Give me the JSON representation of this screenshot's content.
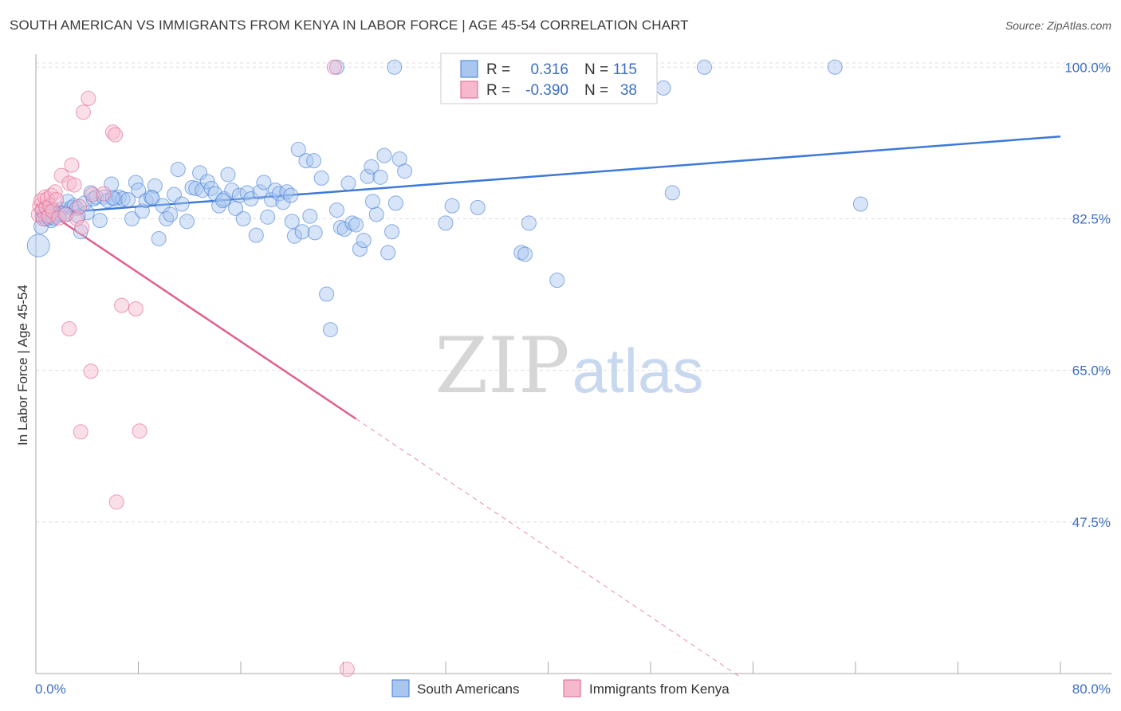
{
  "title": "SOUTH AMERICAN VS IMMIGRANTS FROM KENYA IN LABOR FORCE | AGE 45-54 CORRELATION CHART",
  "source": "Source: ZipAtlas.com",
  "watermark": {
    "zip": "ZIP",
    "atlas": "atlas"
  },
  "colors": {
    "blue": "#3d79d6",
    "blue_fill": "#a9c6ef",
    "pink": "#e0608e",
    "pink_fill": "#f6b8cd",
    "grid": "#dddddd",
    "axis_text": "#3d6fc4"
  },
  "stats": {
    "blue": {
      "r_label": "R =",
      "r_value": "0.316",
      "n_label": "N =",
      "n_value": "115"
    },
    "pink": {
      "r_label": "R =",
      "r_value": "-0.390",
      "n_label": "N =",
      "n_value": "38"
    }
  },
  "legend": [
    {
      "name": "South Americans"
    },
    {
      "name": "Immigrants from Kenya"
    }
  ],
  "chart_data": {
    "type": "scatter",
    "title": "SOUTH AMERICAN VS IMMIGRANTS FROM KENYA IN LABOR FORCE | AGE 45-54 CORRELATION CHART",
    "xlabel": "",
    "ylabel": "In Labor Force | Age 45-54",
    "xlim": [
      0,
      80
    ],
    "ylim": [
      30,
      101.5
    ],
    "x_tick_labels": [
      {
        "value": 0,
        "label": "0.0%"
      },
      {
        "value": 80,
        "label": "80.0%"
      }
    ],
    "y_tick_labels": [
      {
        "value": 100,
        "label": "100.0%"
      },
      {
        "value": 82.5,
        "label": "82.5%"
      },
      {
        "value": 65,
        "label": "65.0%"
      },
      {
        "value": 47.5,
        "label": "47.5%"
      }
    ],
    "grid": true,
    "legend_position": "bottom-center",
    "series": [
      {
        "name": "South Americans",
        "color": "#3d79d6",
        "trend": {
          "x0": 0,
          "y0": 83.0,
          "x1": 80,
          "y1": 92.0
        },
        "points": [
          [
            0.2,
            79.4
          ],
          [
            0.4,
            81.6
          ],
          [
            0.5,
            82.8
          ],
          [
            0.6,
            83.4
          ],
          [
            0.7,
            83.0
          ],
          [
            0.8,
            82.5
          ],
          [
            0.9,
            83.2
          ],
          [
            1.0,
            82.6
          ],
          [
            1.1,
            83.0
          ],
          [
            1.2,
            82.3
          ],
          [
            1.4,
            83.5
          ],
          [
            1.5,
            83.0
          ],
          [
            1.6,
            82.8
          ],
          [
            1.8,
            83.1
          ],
          [
            2.0,
            83.6
          ],
          [
            2.2,
            83.2
          ],
          [
            2.5,
            84.5
          ],
          [
            2.8,
            83.8
          ],
          [
            3.0,
            84.0
          ],
          [
            3.2,
            83.7
          ],
          [
            3.5,
            81.0
          ],
          [
            3.8,
            84.3
          ],
          [
            4.0,
            83.2
          ],
          [
            4.3,
            85.5
          ],
          [
            4.5,
            84.8
          ],
          [
            4.7,
            85.0
          ],
          [
            5.0,
            82.3
          ],
          [
            5.3,
            85.0
          ],
          [
            5.6,
            84.6
          ],
          [
            5.9,
            86.5
          ],
          [
            6.2,
            84.8
          ],
          [
            6.5,
            85.0
          ],
          [
            6.8,
            84.8
          ],
          [
            7.2,
            84.7
          ],
          [
            7.5,
            82.5
          ],
          [
            7.8,
            86.7
          ],
          [
            8.0,
            85.8
          ],
          [
            8.3,
            83.4
          ],
          [
            8.6,
            84.6
          ],
          [
            9.0,
            85.0
          ],
          [
            9.3,
            86.3
          ],
          [
            9.6,
            80.2
          ],
          [
            9.9,
            84.0
          ],
          [
            10.2,
            82.5
          ],
          [
            10.5,
            83.0
          ],
          [
            10.8,
            85.3
          ],
          [
            11.1,
            88.2
          ],
          [
            11.4,
            84.2
          ],
          [
            11.8,
            82.2
          ],
          [
            12.2,
            86.1
          ],
          [
            12.5,
            86.0
          ],
          [
            12.8,
            87.8
          ],
          [
            13.0,
            85.8
          ],
          [
            13.4,
            86.8
          ],
          [
            13.7,
            86.0
          ],
          [
            14.0,
            85.4
          ],
          [
            14.3,
            84.0
          ],
          [
            14.7,
            84.8
          ],
          [
            15.0,
            87.6
          ],
          [
            15.3,
            85.8
          ],
          [
            15.6,
            83.7
          ],
          [
            15.9,
            85.2
          ],
          [
            16.2,
            82.5
          ],
          [
            16.5,
            85.5
          ],
          [
            16.8,
            84.8
          ],
          [
            17.2,
            80.6
          ],
          [
            17.5,
            85.6
          ],
          [
            17.8,
            86.7
          ],
          [
            18.1,
            82.7
          ],
          [
            18.4,
            84.7
          ],
          [
            18.7,
            85.8
          ],
          [
            19.0,
            85.4
          ],
          [
            19.3,
            84.4
          ],
          [
            19.6,
            85.6
          ],
          [
            19.9,
            85.2
          ],
          [
            20.2,
            80.5
          ],
          [
            20.5,
            90.5
          ],
          [
            20.8,
            81.0
          ],
          [
            21.1,
            89.2
          ],
          [
            21.4,
            82.8
          ],
          [
            21.7,
            89.2
          ],
          [
            22.3,
            87.2
          ],
          [
            22.7,
            73.8
          ],
          [
            23.0,
            69.7
          ],
          [
            23.5,
            83.5
          ],
          [
            23.8,
            81.5
          ],
          [
            24.1,
            81.3
          ],
          [
            24.4,
            86.6
          ],
          [
            24.7,
            82.0
          ],
          [
            25.0,
            81.8
          ],
          [
            25.3,
            79.0
          ],
          [
            25.6,
            80.0
          ],
          [
            25.9,
            87.4
          ],
          [
            26.2,
            88.5
          ],
          [
            26.6,
            83.0
          ],
          [
            26.9,
            87.3
          ],
          [
            27.2,
            89.8
          ],
          [
            27.5,
            78.6
          ],
          [
            27.8,
            81.0
          ],
          [
            28.1,
            84.3
          ],
          [
            28.4,
            89.4
          ],
          [
            28.8,
            88.0
          ],
          [
            23.5,
            100.0
          ],
          [
            28.0,
            100.0
          ],
          [
            32.0,
            82.0
          ],
          [
            32.5,
            84.0
          ],
          [
            34.5,
            83.8
          ],
          [
            37.9,
            78.6
          ],
          [
            38.2,
            78.4
          ],
          [
            38.5,
            82.0
          ],
          [
            40.7,
            75.4
          ],
          [
            49.7,
            85.5
          ],
          [
            49.0,
            97.6
          ],
          [
            52.2,
            100.0
          ],
          [
            62.4,
            100.0
          ],
          [
            64.4,
            84.2
          ],
          [
            1.4,
            82.6
          ],
          [
            2.4,
            83.0
          ],
          [
            3.3,
            82.8
          ],
          [
            6.0,
            84.9
          ],
          [
            9.1,
            84.9
          ],
          [
            14.6,
            84.6
          ],
          [
            20.0,
            82.2
          ],
          [
            21.8,
            80.9
          ],
          [
            26.3,
            84.5
          ]
        ],
        "sizes": {
          "0": 28
        }
      },
      {
        "name": "Immigrants from Kenya",
        "color": "#e0608e",
        "trend": {
          "x0": 0,
          "y0": 84.2,
          "x1": 25,
          "y1": 59.4,
          "dash_x1": 55,
          "dash_y1": 29.6
        },
        "points": [
          [
            0.2,
            83.0
          ],
          [
            0.3,
            84.0
          ],
          [
            0.4,
            84.6
          ],
          [
            0.5,
            83.5
          ],
          [
            0.6,
            82.5
          ],
          [
            0.7,
            85.0
          ],
          [
            0.8,
            83.8
          ],
          [
            0.9,
            84.8
          ],
          [
            1.0,
            82.8
          ],
          [
            1.1,
            84.0
          ],
          [
            1.2,
            85.2
          ],
          [
            1.3,
            83.4
          ],
          [
            1.5,
            85.6
          ],
          [
            1.6,
            84.7
          ],
          [
            1.8,
            82.6
          ],
          [
            2.0,
            87.5
          ],
          [
            2.3,
            83.0
          ],
          [
            2.6,
            86.6
          ],
          [
            2.8,
            88.7
          ],
          [
            3.0,
            86.4
          ],
          [
            3.2,
            82.5
          ],
          [
            3.4,
            83.9
          ],
          [
            3.7,
            94.8
          ],
          [
            4.1,
            96.4
          ],
          [
            4.4,
            85.3
          ],
          [
            6.0,
            92.5
          ],
          [
            6.2,
            92.2
          ],
          [
            6.7,
            72.5
          ],
          [
            7.8,
            72.1
          ],
          [
            5.3,
            85.4
          ],
          [
            2.6,
            69.8
          ],
          [
            4.3,
            64.9
          ],
          [
            3.5,
            57.9
          ],
          [
            8.1,
            58.0
          ],
          [
            6.3,
            49.8
          ],
          [
            23.3,
            100.0
          ],
          [
            24.3,
            30.5
          ],
          [
            3.6,
            81.5
          ]
        ],
        "sizes": {}
      }
    ]
  }
}
